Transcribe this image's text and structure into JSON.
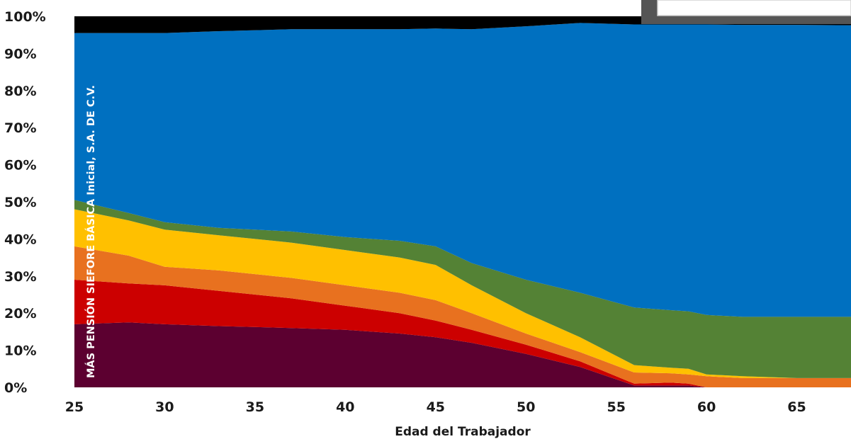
{
  "chart_data": {
    "type": "area",
    "stacked": true,
    "percent": true,
    "title": "",
    "fund_label": "MÁS PENSIÓN SIEFORE BÁSICA Inicial, S.A. DE C.V.",
    "xlabel": "Edad del Trabajador",
    "ylabel": "",
    "xlim": [
      25,
      68
    ],
    "ylim": [
      0,
      100
    ],
    "x_ticks": [
      25,
      30,
      35,
      40,
      45,
      50,
      55,
      60,
      65
    ],
    "y_ticks": [
      "0%",
      "10%",
      "20%",
      "30%",
      "40%",
      "50%",
      "60%",
      "70%",
      "80%",
      "90%",
      "100%"
    ],
    "grid": false,
    "legend": "none",
    "x": [
      25,
      28,
      30,
      33,
      37,
      40,
      43,
      45,
      47,
      50,
      53,
      56,
      58,
      59,
      60,
      62,
      65,
      68
    ],
    "series": [
      {
        "color": "#5c0030",
        "values": [
          17,
          17.5,
          17,
          16.5,
          16,
          15.5,
          14.5,
          13.5,
          12,
          9,
          5.5,
          0.5,
          0.5,
          0.5,
          0,
          0,
          0,
          0
        ]
      },
      {
        "color": "#cc0000",
        "values": [
          12,
          10.5,
          10.5,
          9.5,
          8,
          6.5,
          5.5,
          4.5,
          3.5,
          2.5,
          1.5,
          0.5,
          0.8,
          0.5,
          0,
          0,
          0,
          0
        ]
      },
      {
        "color": "#e8711f",
        "values": [
          9,
          7.5,
          5,
          5.5,
          5.5,
          5.5,
          5.5,
          5.5,
          4.5,
          3,
          2.5,
          3,
          2.5,
          2.5,
          3,
          2.5,
          2.5,
          2.5
        ]
      },
      {
        "color": "#ffc000",
        "values": [
          10,
          9.5,
          10,
          9.5,
          9.5,
          9.5,
          9.5,
          9.5,
          7.5,
          5.5,
          4,
          2,
          1.5,
          1.5,
          0.5,
          0.5,
          0,
          0
        ]
      },
      {
        "color": "#548235",
        "values": [
          2.5,
          2,
          2,
          2,
          3,
          3.5,
          4.5,
          5,
          6,
          9,
          12,
          15.5,
          15.5,
          15.5,
          16,
          16,
          16.5,
          16.5
        ]
      },
      {
        "color": "#0070c0",
        "values": [
          45,
          48.5,
          51,
          53,
          54.5,
          56,
          57,
          58.7,
          63,
          68.3,
          72.7,
          76.3,
          77,
          77.3,
          78.3,
          78.7,
          78.7,
          78.6
        ]
      },
      {
        "color": "#000000",
        "values": [
          4.5,
          4.5,
          4.5,
          4,
          3.5,
          3.5,
          3.5,
          3.3,
          3.5,
          2.7,
          1.8,
          2.2,
          2.2,
          2.2,
          2.2,
          2.3,
          2.3,
          2.4
        ]
      }
    ]
  }
}
